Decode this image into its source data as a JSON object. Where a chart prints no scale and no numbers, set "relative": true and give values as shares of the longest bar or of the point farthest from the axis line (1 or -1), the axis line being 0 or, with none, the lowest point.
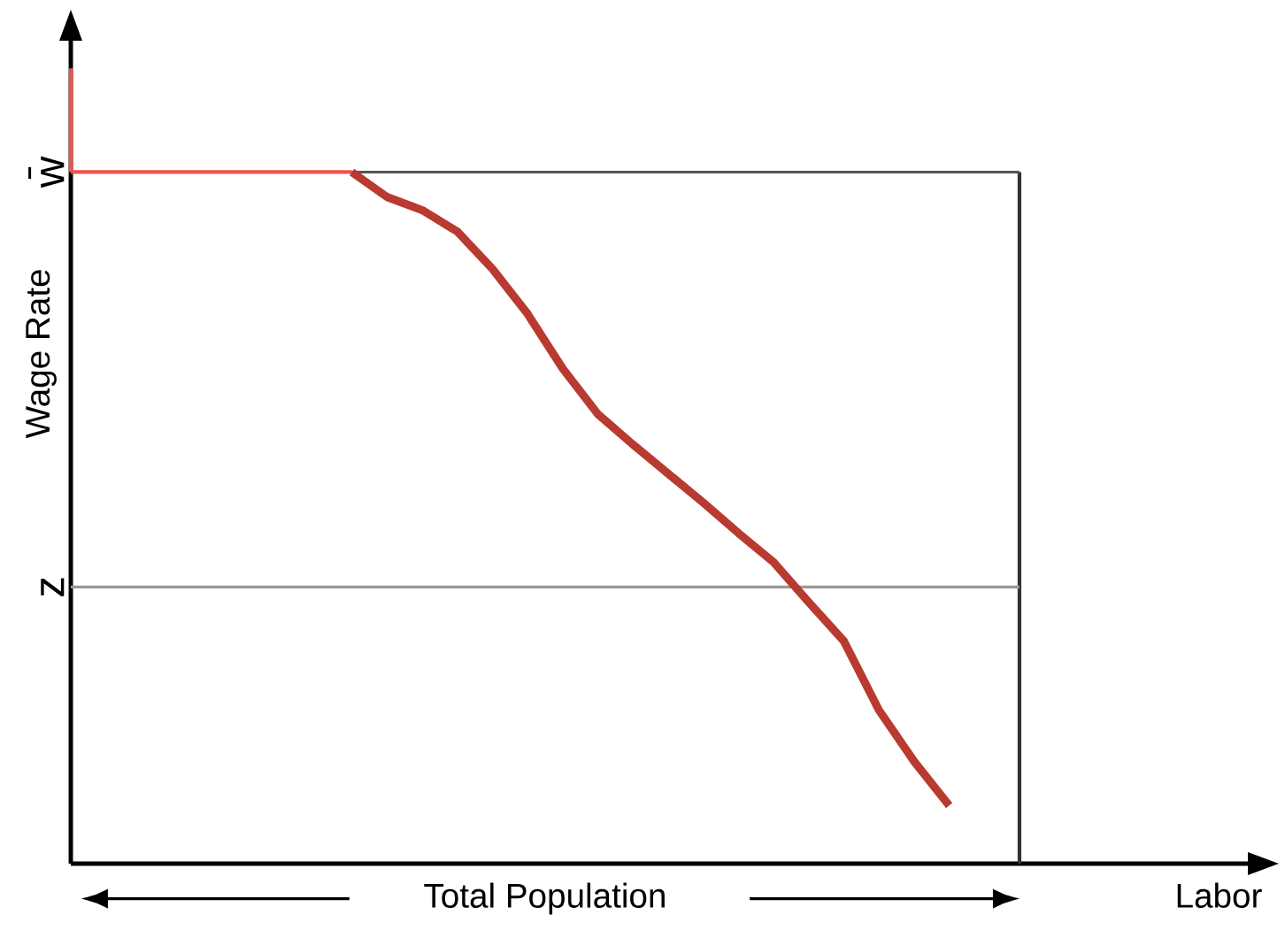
{
  "chart_data": {
    "type": "line",
    "relative": true,
    "ylabel": "Wage Rate",
    "xlabel": "Total Population",
    "annotations": [
      "Labor"
    ],
    "marker": "none",
    "line_style": "solid",
    "categories": [
      null,
      null,
      null,
      null,
      null,
      null,
      null,
      null,
      null,
      null,
      null,
      null,
      null,
      null,
      null,
      null,
      null,
      null,
      null,
      null,
      null,
      null,
      null,
      null,
      null,
      null,
      null,
      null
    ],
    "series": [
      {
        "color": "#f0524a",
        "values": [
          1,
          1,
          1,
          1,
          1,
          1,
          1,
          1,
          1,
          null,
          null,
          null,
          null,
          null,
          null,
          null,
          null,
          null,
          null,
          null,
          null,
          null,
          null,
          null,
          null,
          null,
          null,
          null
        ]
      },
      {
        "color": "#b83a30",
        "values": [
          null,
          null,
          null,
          null,
          null,
          null,
          null,
          null,
          1,
          0.964,
          0.945,
          0.914,
          0.86,
          0.795,
          0.716,
          0.65,
          0.606,
          0.564,
          0.522,
          0.478,
          0.436,
          0.378,
          0.322,
          0.222,
          0.148,
          0.084,
          null,
          null
        ]
      }
    ],
    "ref_lines": [
      {
        "axis": "y",
        "value": 1,
        "label": "w̄",
        "color": "#555555"
      },
      {
        "axis": "y",
        "value": 0.4,
        "label": "z",
        "color": "#999999"
      }
    ]
  }
}
